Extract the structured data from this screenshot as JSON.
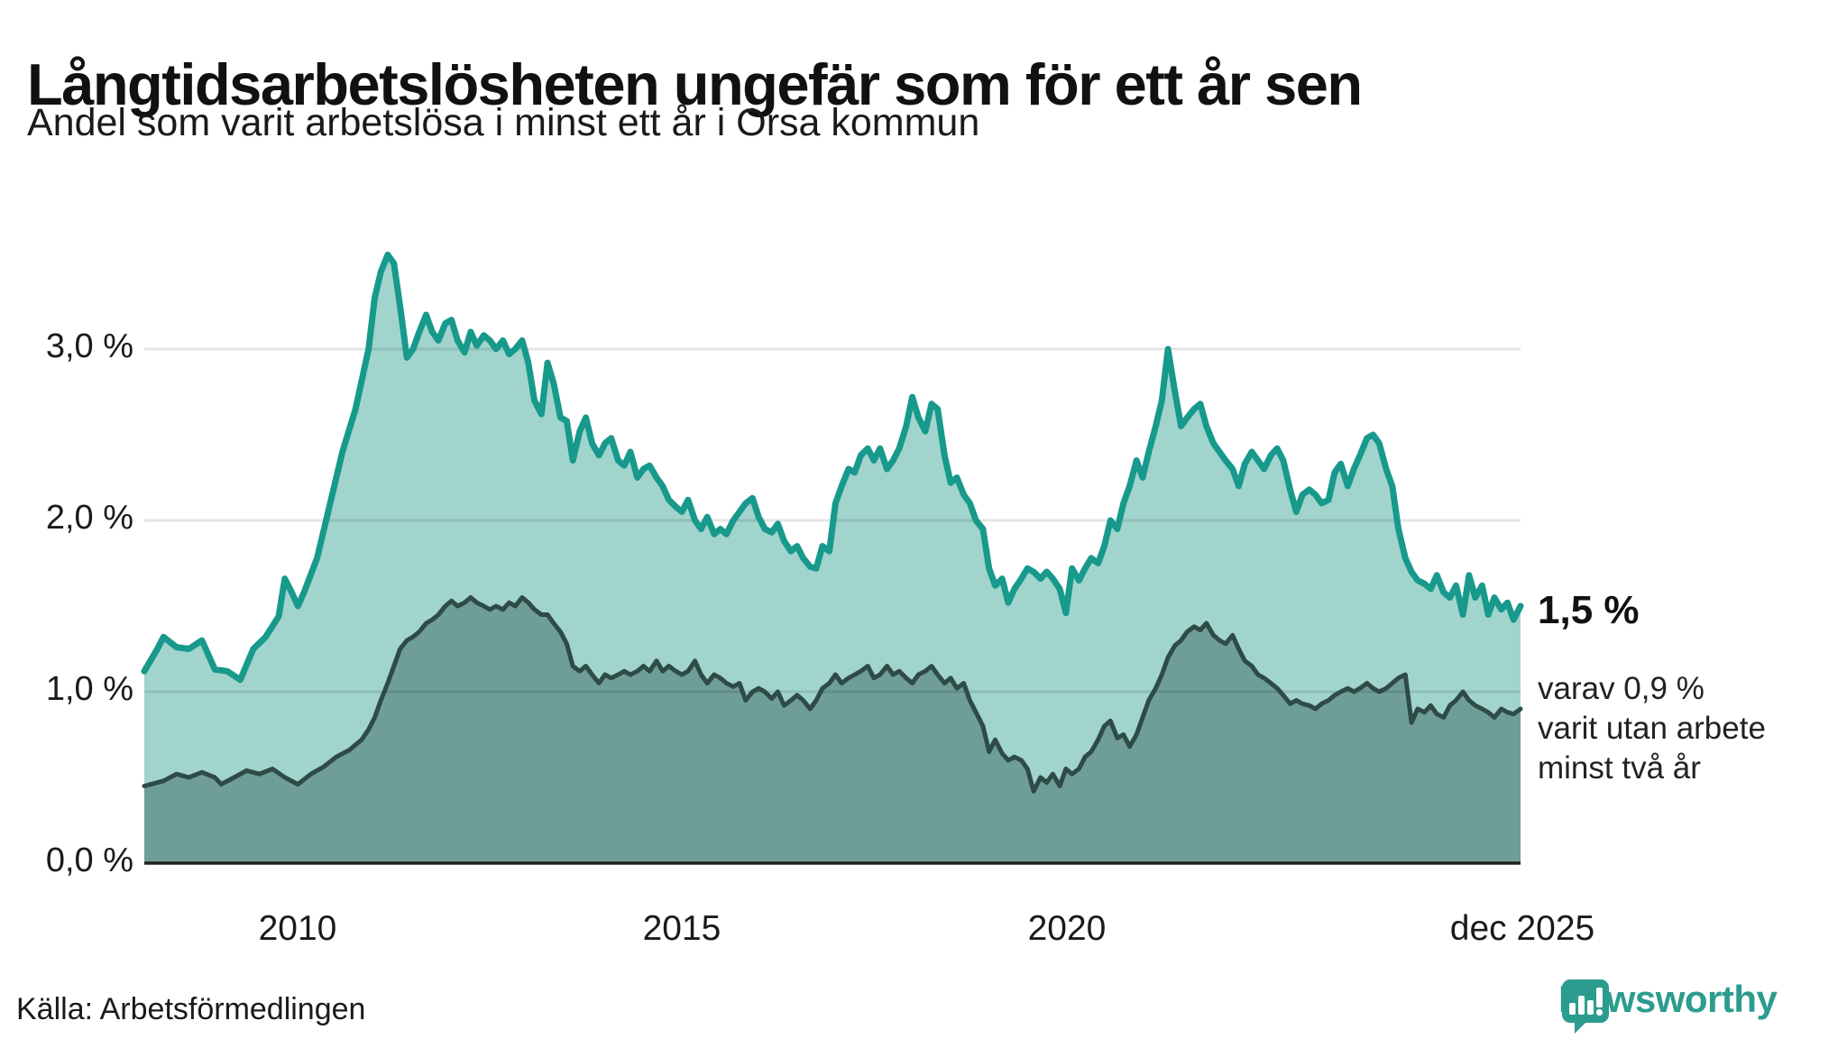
{
  "title": "Långtidsarbetslösheten ungefär som för ett år sen",
  "subtitle": "Andel som varit arbetslösa i minst ett år i Orsa kommun",
  "source": "Källa: Arbetsförmedlingen",
  "branding": {
    "name": "Newsworthy",
    "color": "#2b9c8e"
  },
  "annotations": {
    "end_value_label": "1,5 %",
    "note_line1": "varav 0,9 %",
    "note_line2": "varit utan arbete",
    "note_line3": "minst två år"
  },
  "axes": {
    "y_ticks": [
      "3,0 %",
      "2,0 %",
      "1,0 %",
      "0,0 %"
    ],
    "x_ticks": [
      "2010",
      "2015",
      "2020",
      "dec 2025"
    ],
    "x_tick_values": [
      2010.0,
      2015.0,
      2020.0,
      2025.92
    ]
  },
  "colors": {
    "teal_line": "#17998c",
    "teal_fill": "#a1d4cd",
    "dark_line": "#2e4b47",
    "dark_fill": "#6f9e98",
    "grid": "rgba(0,0,0,0.10)",
    "baseline": "#202020",
    "text": "#1a1a1a"
  },
  "chart_data": {
    "type": "area",
    "title": "Långtidsarbetslösheten ungefär som för ett år sen",
    "subtitle_as_ylabel": "Andel som varit arbetslösa i minst ett år i Orsa kommun",
    "unit": "%",
    "x_range": [
      2008.0,
      2025.92
    ],
    "ylim": [
      0,
      3.8
    ],
    "grid_values": [
      1.0,
      2.0,
      3.0
    ],
    "legend_position": "none",
    "end_labels": {
      "long_term_1yr": 1.5,
      "long_term_2yr": 0.9
    },
    "series": [
      {
        "name": "Andel arbetslösa minst ett år",
        "line_color": "#17998c",
        "fill_color": "#a1d4cd",
        "line_width": 7,
        "x": [
          2008.0,
          2008.17,
          2008.25,
          2008.42,
          2008.58,
          2008.75,
          2008.92,
          2009.08,
          2009.25,
          2009.42,
          2009.58,
          2009.75,
          2009.83,
          2009.92,
          2010.0,
          2010.08,
          2010.25,
          2010.42,
          2010.58,
          2010.75,
          2010.92,
          2011.0,
          2011.08,
          2011.17,
          2011.25,
          2011.33,
          2011.42,
          2011.5,
          2011.58,
          2011.67,
          2011.75,
          2011.83,
          2011.92,
          2012.0,
          2012.08,
          2012.17,
          2012.25,
          2012.33,
          2012.42,
          2012.5,
          2012.58,
          2012.67,
          2012.75,
          2012.83,
          2012.92,
          2013.0,
          2013.08,
          2013.17,
          2013.25,
          2013.33,
          2013.42,
          2013.5,
          2013.58,
          2013.67,
          2013.75,
          2013.83,
          2013.92,
          2014.0,
          2014.08,
          2014.17,
          2014.25,
          2014.33,
          2014.42,
          2014.5,
          2014.58,
          2014.67,
          2014.75,
          2014.83,
          2014.92,
          2015.0,
          2015.08,
          2015.17,
          2015.25,
          2015.33,
          2015.42,
          2015.5,
          2015.58,
          2015.67,
          2015.75,
          2015.83,
          2015.92,
          2016.0,
          2016.08,
          2016.17,
          2016.25,
          2016.33,
          2016.42,
          2016.5,
          2016.58,
          2016.67,
          2016.75,
          2016.83,
          2016.92,
          2017.0,
          2017.08,
          2017.17,
          2017.25,
          2017.33,
          2017.42,
          2017.5,
          2017.58,
          2017.67,
          2017.75,
          2017.83,
          2017.92,
          2018.0,
          2018.08,
          2018.17,
          2018.25,
          2018.33,
          2018.42,
          2018.5,
          2018.58,
          2018.67,
          2018.75,
          2018.83,
          2018.92,
          2019.0,
          2019.08,
          2019.17,
          2019.25,
          2019.33,
          2019.42,
          2019.5,
          2019.58,
          2019.67,
          2019.75,
          2019.83,
          2019.92,
          2020.0,
          2020.08,
          2020.17,
          2020.25,
          2020.33,
          2020.42,
          2020.5,
          2020.58,
          2020.67,
          2020.75,
          2020.83,
          2020.92,
          2021.0,
          2021.08,
          2021.17,
          2021.25,
          2021.33,
          2021.42,
          2021.5,
          2021.58,
          2021.67,
          2021.75,
          2021.83,
          2021.92,
          2022.0,
          2022.08,
          2022.17,
          2022.25,
          2022.33,
          2022.42,
          2022.5,
          2022.58,
          2022.67,
          2022.75,
          2022.83,
          2022.92,
          2023.0,
          2023.08,
          2023.17,
          2023.25,
          2023.33,
          2023.42,
          2023.5,
          2023.58,
          2023.67,
          2023.75,
          2023.83,
          2023.92,
          2024.0,
          2024.08,
          2024.17,
          2024.25,
          2024.33,
          2024.42,
          2024.5,
          2024.58,
          2024.67,
          2024.75,
          2024.83,
          2024.92,
          2025.0,
          2025.08,
          2025.17,
          2025.25,
          2025.33,
          2025.42,
          2025.5,
          2025.58,
          2025.67,
          2025.75,
          2025.83,
          2025.92
        ],
        "values": [
          1.12,
          1.25,
          1.32,
          1.26,
          1.25,
          1.3,
          1.13,
          1.12,
          1.07,
          1.25,
          1.32,
          1.44,
          1.66,
          1.58,
          1.5,
          1.58,
          1.78,
          2.1,
          2.4,
          2.65,
          3.0,
          3.3,
          3.45,
          3.55,
          3.5,
          3.25,
          2.95,
          3.0,
          3.1,
          3.2,
          3.1,
          3.05,
          3.15,
          3.17,
          3.05,
          2.98,
          3.1,
          3.02,
          3.08,
          3.05,
          3.0,
          3.05,
          2.97,
          3.0,
          3.05,
          2.92,
          2.7,
          2.62,
          2.92,
          2.8,
          2.6,
          2.58,
          2.35,
          2.52,
          2.6,
          2.45,
          2.38,
          2.45,
          2.48,
          2.35,
          2.32,
          2.4,
          2.25,
          2.3,
          2.32,
          2.25,
          2.2,
          2.12,
          2.08,
          2.05,
          2.12,
          2.0,
          1.95,
          2.02,
          1.92,
          1.95,
          1.92,
          2.0,
          2.05,
          2.1,
          2.13,
          2.02,
          1.95,
          1.93,
          1.98,
          1.88,
          1.82,
          1.85,
          1.78,
          1.73,
          1.72,
          1.85,
          1.82,
          2.1,
          2.2,
          2.3,
          2.28,
          2.38,
          2.42,
          2.35,
          2.42,
          2.3,
          2.35,
          2.42,
          2.55,
          2.72,
          2.6,
          2.52,
          2.68,
          2.65,
          2.38,
          2.22,
          2.25,
          2.15,
          2.1,
          2.0,
          1.95,
          1.72,
          1.62,
          1.66,
          1.52,
          1.6,
          1.66,
          1.72,
          1.7,
          1.66,
          1.7,
          1.66,
          1.6,
          1.46,
          1.72,
          1.65,
          1.72,
          1.78,
          1.75,
          1.85,
          2.0,
          1.95,
          2.1,
          2.2,
          2.35,
          2.25,
          2.4,
          2.55,
          2.7,
          3.0,
          2.75,
          2.55,
          2.6,
          2.65,
          2.68,
          2.55,
          2.45,
          2.4,
          2.35,
          2.3,
          2.2,
          2.33,
          2.4,
          2.35,
          2.3,
          2.38,
          2.42,
          2.35,
          2.18,
          2.05,
          2.15,
          2.18,
          2.15,
          2.1,
          2.12,
          2.28,
          2.33,
          2.2,
          2.3,
          2.38,
          2.48,
          2.5,
          2.45,
          2.3,
          2.2,
          1.95,
          1.78,
          1.7,
          1.65,
          1.63,
          1.6,
          1.68,
          1.58,
          1.55,
          1.62,
          1.45,
          1.68,
          1.55,
          1.62,
          1.45,
          1.55,
          1.48,
          1.52,
          1.42,
          1.5
        ]
      },
      {
        "name": "Varav utan arbete minst två år",
        "line_color": "#2e4b47",
        "fill_color": "#6f9e98",
        "line_width": 5,
        "x": [
          2008.0,
          2008.25,
          2008.42,
          2008.58,
          2008.75,
          2008.92,
          2009.0,
          2009.17,
          2009.33,
          2009.5,
          2009.67,
          2009.83,
          2010.0,
          2010.17,
          2010.33,
          2010.5,
          2010.67,
          2010.83,
          2010.92,
          2011.0,
          2011.08,
          2011.17,
          2011.25,
          2011.33,
          2011.42,
          2011.5,
          2011.58,
          2011.67,
          2011.75,
          2011.83,
          2011.92,
          2012.0,
          2012.08,
          2012.17,
          2012.25,
          2012.33,
          2012.42,
          2012.5,
          2012.58,
          2012.67,
          2012.75,
          2012.83,
          2012.92,
          2013.0,
          2013.08,
          2013.17,
          2013.25,
          2013.33,
          2013.42,
          2013.5,
          2013.58,
          2013.67,
          2013.75,
          2013.83,
          2013.92,
          2014.0,
          2014.08,
          2014.17,
          2014.25,
          2014.33,
          2014.42,
          2014.5,
          2014.58,
          2014.67,
          2014.75,
          2014.83,
          2014.92,
          2015.0,
          2015.08,
          2015.17,
          2015.25,
          2015.33,
          2015.42,
          2015.5,
          2015.58,
          2015.67,
          2015.75,
          2015.83,
          2015.92,
          2016.0,
          2016.08,
          2016.17,
          2016.25,
          2016.33,
          2016.42,
          2016.5,
          2016.58,
          2016.67,
          2016.75,
          2016.83,
          2016.92,
          2017.0,
          2017.08,
          2017.17,
          2017.25,
          2017.33,
          2017.42,
          2017.5,
          2017.58,
          2017.67,
          2017.75,
          2017.83,
          2017.92,
          2018.0,
          2018.08,
          2018.17,
          2018.25,
          2018.33,
          2018.42,
          2018.5,
          2018.58,
          2018.67,
          2018.75,
          2018.83,
          2018.92,
          2019.0,
          2019.08,
          2019.17,
          2019.25,
          2019.33,
          2019.42,
          2019.5,
          2019.58,
          2019.67,
          2019.75,
          2019.83,
          2019.92,
          2020.0,
          2020.08,
          2020.17,
          2020.25,
          2020.33,
          2020.42,
          2020.5,
          2020.58,
          2020.67,
          2020.75,
          2020.83,
          2020.92,
          2021.0,
          2021.08,
          2021.17,
          2021.25,
          2021.33,
          2021.42,
          2021.5,
          2021.58,
          2021.67,
          2021.75,
          2021.83,
          2021.92,
          2022.0,
          2022.08,
          2022.17,
          2022.25,
          2022.33,
          2022.42,
          2022.5,
          2022.58,
          2022.67,
          2022.75,
          2022.83,
          2022.92,
          2023.0,
          2023.08,
          2023.17,
          2023.25,
          2023.33,
          2023.42,
          2023.5,
          2023.58,
          2023.67,
          2023.75,
          2023.83,
          2023.92,
          2024.0,
          2024.08,
          2024.17,
          2024.25,
          2024.33,
          2024.42,
          2024.5,
          2024.58,
          2024.67,
          2024.75,
          2024.83,
          2024.92,
          2025.0,
          2025.08,
          2025.17,
          2025.25,
          2025.33,
          2025.42,
          2025.5,
          2025.58,
          2025.67,
          2025.75,
          2025.83,
          2025.92
        ],
        "values": [
          0.45,
          0.48,
          0.52,
          0.5,
          0.53,
          0.5,
          0.46,
          0.5,
          0.54,
          0.52,
          0.55,
          0.5,
          0.46,
          0.52,
          0.56,
          0.62,
          0.66,
          0.72,
          0.78,
          0.85,
          0.95,
          1.05,
          1.15,
          1.25,
          1.3,
          1.32,
          1.35,
          1.4,
          1.42,
          1.45,
          1.5,
          1.53,
          1.5,
          1.52,
          1.55,
          1.52,
          1.5,
          1.48,
          1.5,
          1.48,
          1.52,
          1.5,
          1.55,
          1.52,
          1.48,
          1.45,
          1.45,
          1.4,
          1.35,
          1.28,
          1.15,
          1.12,
          1.15,
          1.1,
          1.05,
          1.1,
          1.08,
          1.1,
          1.12,
          1.1,
          1.12,
          1.15,
          1.12,
          1.18,
          1.12,
          1.15,
          1.12,
          1.1,
          1.12,
          1.18,
          1.1,
          1.05,
          1.1,
          1.08,
          1.05,
          1.03,
          1.05,
          0.95,
          1.0,
          1.02,
          1.0,
          0.96,
          1.0,
          0.92,
          0.95,
          0.98,
          0.95,
          0.9,
          0.95,
          1.02,
          1.05,
          1.1,
          1.05,
          1.08,
          1.1,
          1.12,
          1.15,
          1.08,
          1.1,
          1.15,
          1.1,
          1.12,
          1.08,
          1.05,
          1.1,
          1.12,
          1.15,
          1.1,
          1.05,
          1.08,
          1.02,
          1.05,
          0.95,
          0.88,
          0.8,
          0.65,
          0.72,
          0.64,
          0.6,
          0.62,
          0.6,
          0.55,
          0.42,
          0.5,
          0.47,
          0.52,
          0.45,
          0.55,
          0.52,
          0.55,
          0.62,
          0.65,
          0.72,
          0.8,
          0.83,
          0.73,
          0.75,
          0.68,
          0.75,
          0.85,
          0.95,
          1.02,
          1.1,
          1.2,
          1.27,
          1.3,
          1.35,
          1.38,
          1.36,
          1.4,
          1.33,
          1.3,
          1.28,
          1.33,
          1.25,
          1.18,
          1.15,
          1.1,
          1.08,
          1.05,
          1.02,
          0.98,
          0.93,
          0.95,
          0.93,
          0.92,
          0.9,
          0.93,
          0.95,
          0.98,
          1.0,
          1.02,
          1.0,
          1.02,
          1.05,
          1.02,
          1.0,
          1.02,
          1.05,
          1.08,
          1.1,
          0.82,
          0.9,
          0.88,
          0.92,
          0.87,
          0.85,
          0.92,
          0.95,
          1.0,
          0.95,
          0.92,
          0.9,
          0.88,
          0.85,
          0.9,
          0.88,
          0.87,
          0.9
        ]
      }
    ]
  }
}
